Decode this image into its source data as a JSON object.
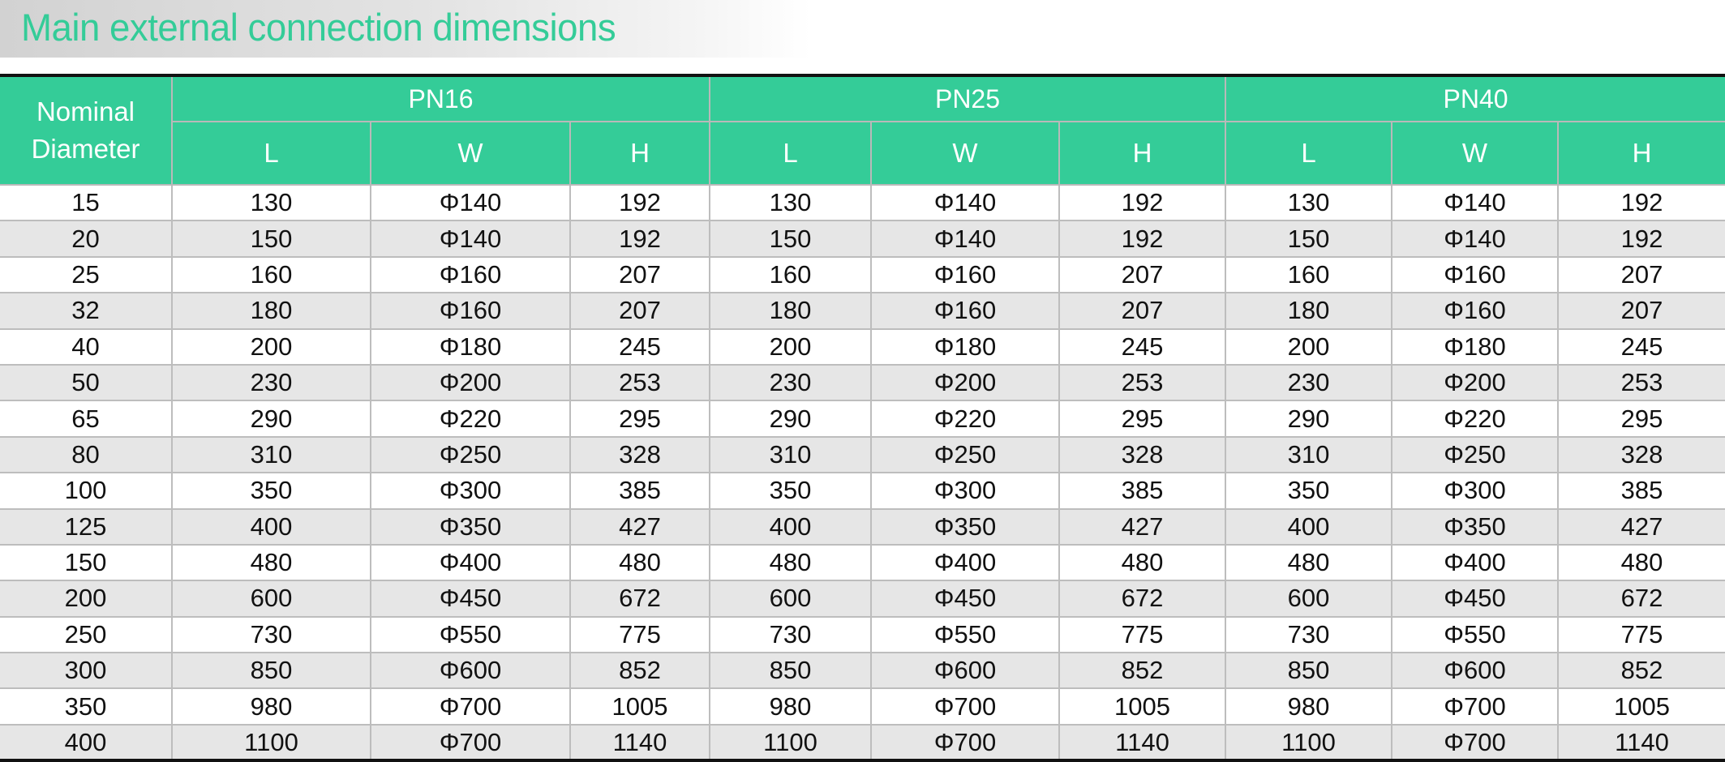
{
  "title": "Main external connection dimensions",
  "colors": {
    "accent": "#34cc98",
    "row_alt": "#e6e6e6"
  },
  "header": {
    "nominal_diameter": "Nominal Diameter",
    "groups": [
      "PN16",
      "PN25",
      "PN40"
    ],
    "subcolumns": [
      "L",
      "W",
      "H"
    ]
  },
  "rows": [
    [
      "15",
      "130",
      "Φ140",
      "192",
      "130",
      "Φ140",
      "192",
      "130",
      "Φ140",
      "192"
    ],
    [
      "20",
      "150",
      "Φ140",
      "192",
      "150",
      "Φ140",
      "192",
      "150",
      "Φ140",
      "192"
    ],
    [
      "25",
      "160",
      "Φ160",
      "207",
      "160",
      "Φ160",
      "207",
      "160",
      "Φ160",
      "207"
    ],
    [
      "32",
      "180",
      "Φ160",
      "207",
      "180",
      "Φ160",
      "207",
      "180",
      "Φ160",
      "207"
    ],
    [
      "40",
      "200",
      "Φ180",
      "245",
      "200",
      "Φ180",
      "245",
      "200",
      "Φ180",
      "245"
    ],
    [
      "50",
      "230",
      "Φ200",
      "253",
      "230",
      "Φ200",
      "253",
      "230",
      "Φ200",
      "253"
    ],
    [
      "65",
      "290",
      "Φ220",
      "295",
      "290",
      "Φ220",
      "295",
      "290",
      "Φ220",
      "295"
    ],
    [
      "80",
      "310",
      "Φ250",
      "328",
      "310",
      "Φ250",
      "328",
      "310",
      "Φ250",
      "328"
    ],
    [
      "100",
      "350",
      "Φ300",
      "385",
      "350",
      "Φ300",
      "385",
      "350",
      "Φ300",
      "385"
    ],
    [
      "125",
      "400",
      "Φ350",
      "427",
      "400",
      "Φ350",
      "427",
      "400",
      "Φ350",
      "427"
    ],
    [
      "150",
      "480",
      "Φ400",
      "480",
      "480",
      "Φ400",
      "480",
      "480",
      "Φ400",
      "480"
    ],
    [
      "200",
      "600",
      "Φ450",
      "672",
      "600",
      "Φ450",
      "672",
      "600",
      "Φ450",
      "672"
    ],
    [
      "250",
      "730",
      "Φ550",
      "775",
      "730",
      "Φ550",
      "775",
      "730",
      "Φ550",
      "775"
    ],
    [
      "300",
      "850",
      "Φ600",
      "852",
      "850",
      "Φ600",
      "852",
      "850",
      "Φ600",
      "852"
    ],
    [
      "350",
      "980",
      "Φ700",
      "1005",
      "980",
      "Φ700",
      "1005",
      "980",
      "Φ700",
      "1005"
    ],
    [
      "400",
      "1100",
      "Φ700",
      "1140",
      "1100",
      "Φ700",
      "1140",
      "1100",
      "Φ700",
      "1140"
    ]
  ]
}
